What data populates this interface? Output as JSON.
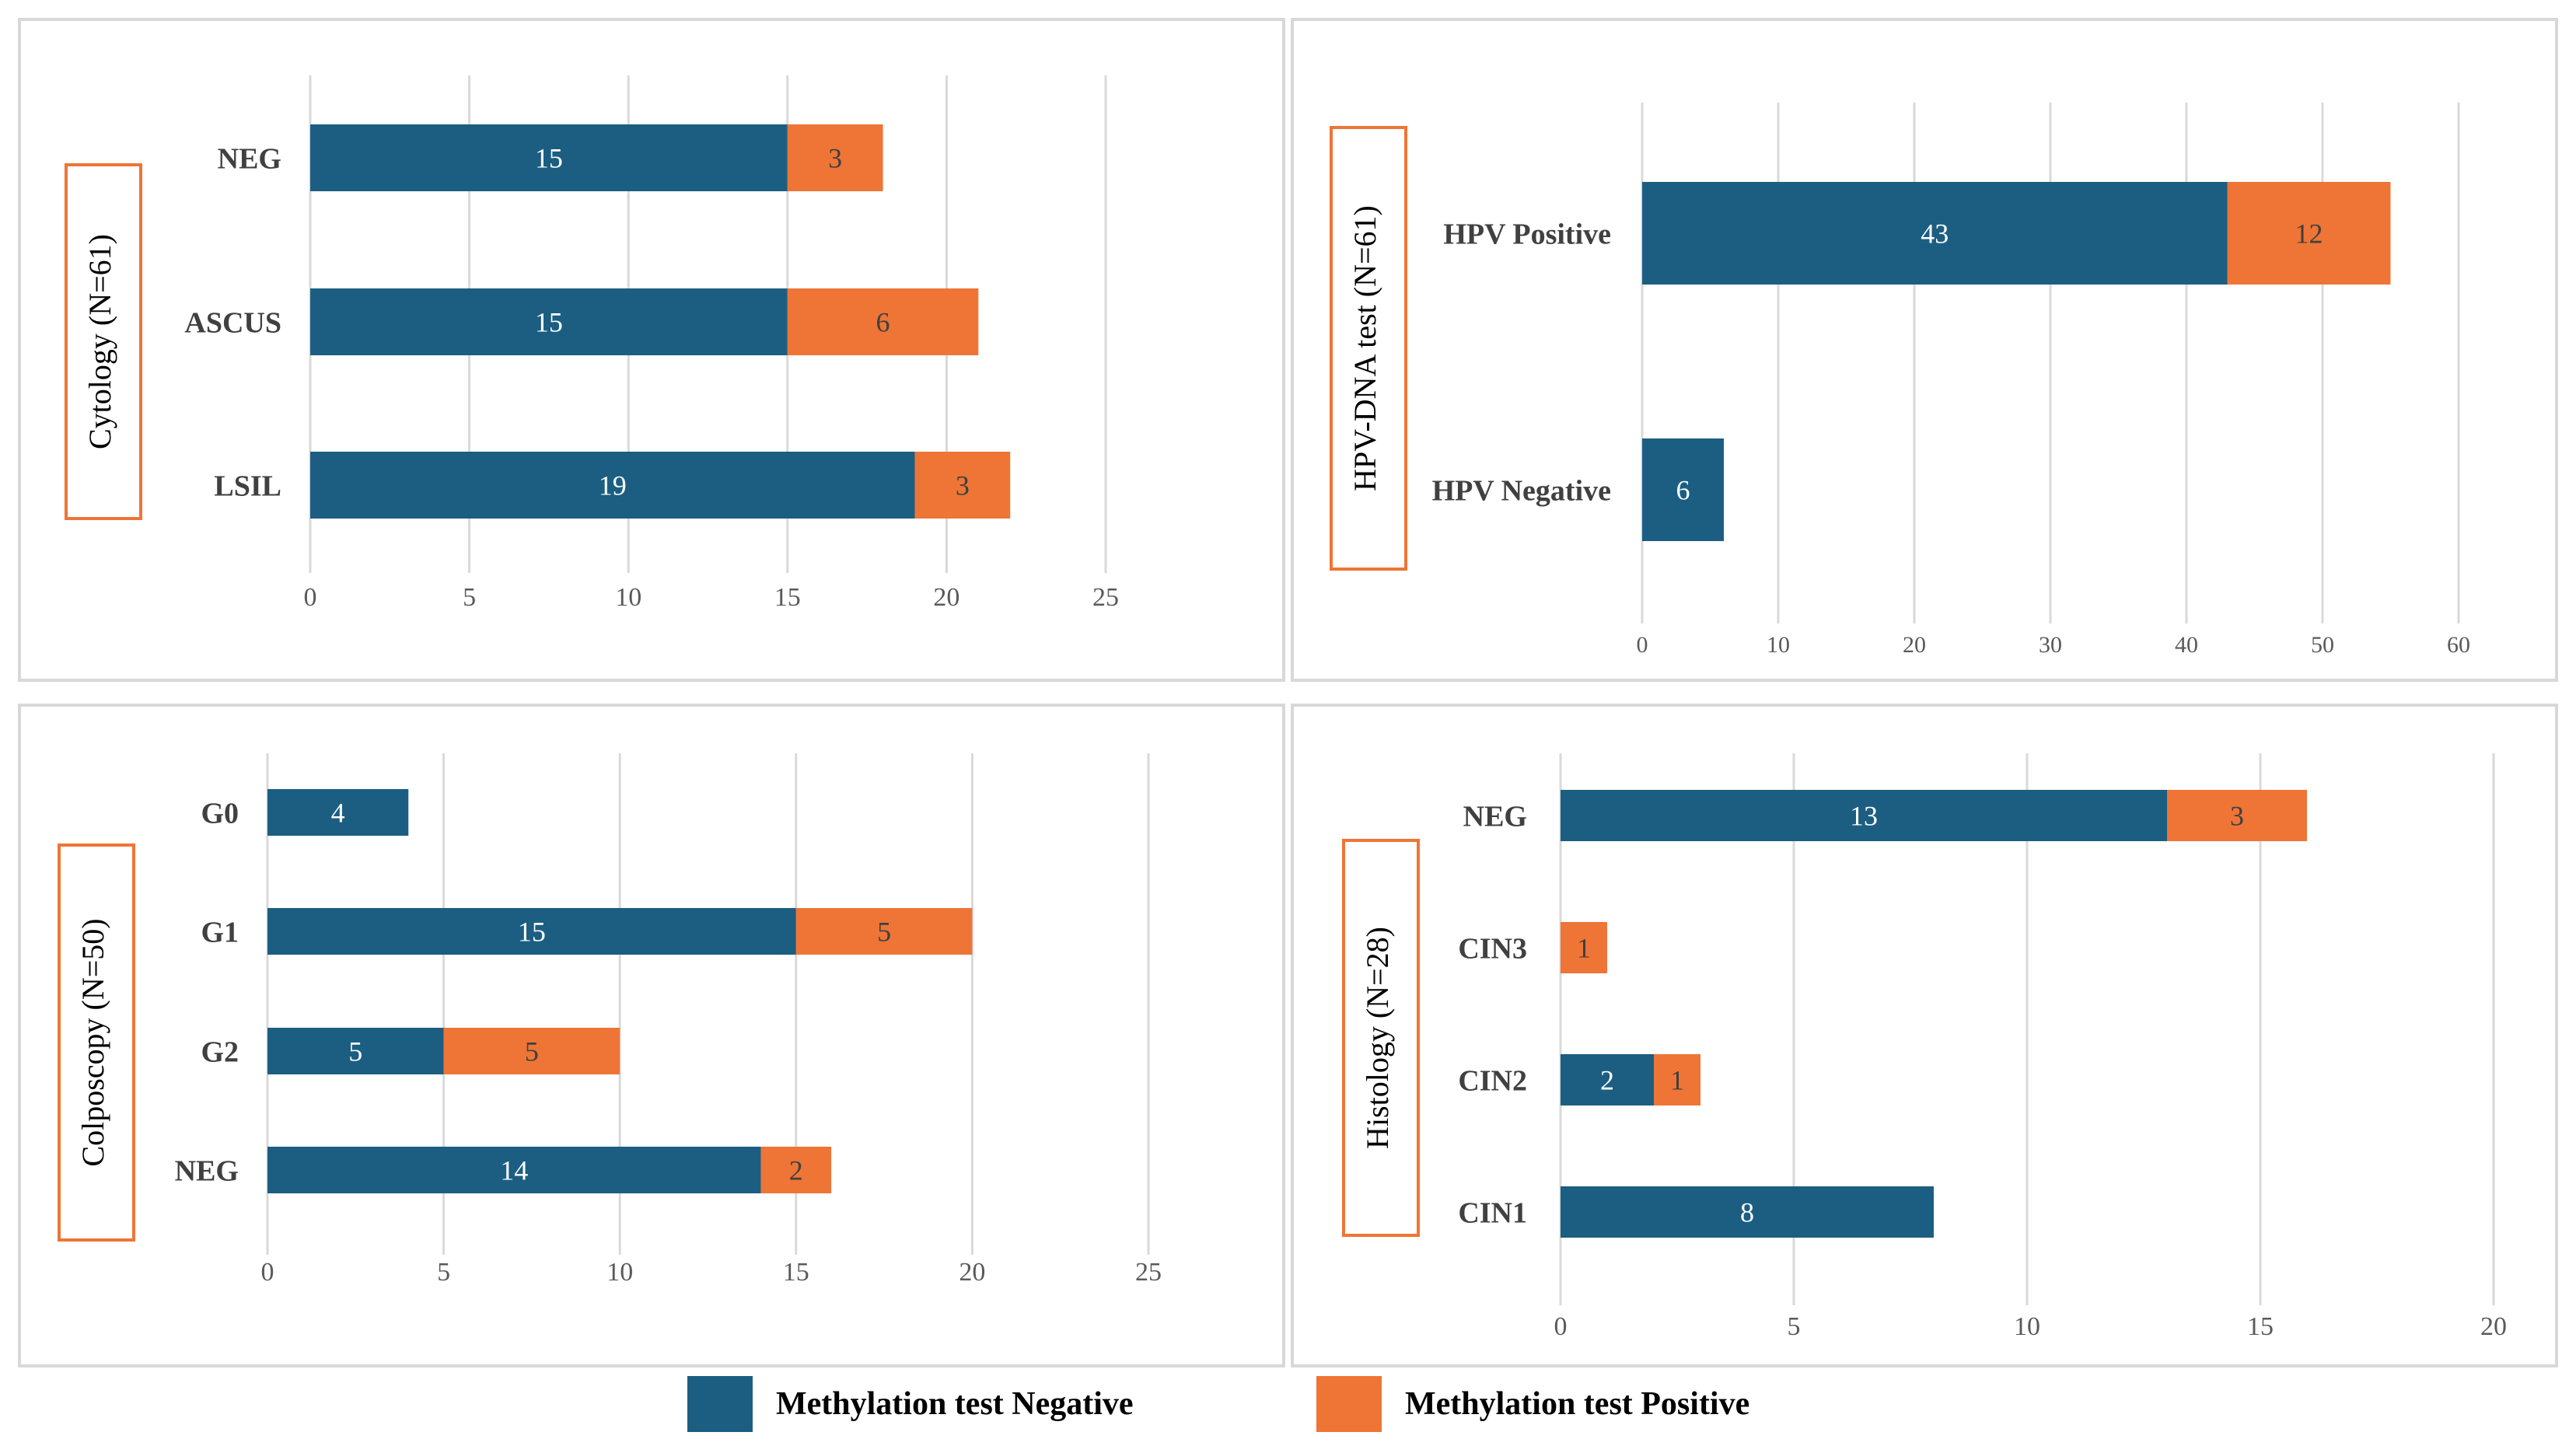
{
  "colors": {
    "negative": "#1b5e82",
    "positive": "#ee7536",
    "title_box_border": "#ee7536",
    "gridline": "#d9d9d9"
  },
  "legend": {
    "negative_label": "Methylation test Negative",
    "positive_label": "Methylation test Positive"
  },
  "chart_data": [
    {
      "type": "bar",
      "orientation": "horizontal",
      "stacked": true,
      "title": "Cytology (N=61)",
      "categories": [
        "NEG",
        "ASCUS",
        "LSIL"
      ],
      "series": [
        {
          "name": "Methylation test Negative",
          "values": [
            15,
            15,
            19
          ]
        },
        {
          "name": "Methylation test Positive",
          "values": [
            3,
            6,
            3
          ]
        }
      ],
      "xlim": [
        0,
        25
      ],
      "xticks": [
        0,
        5,
        10,
        15,
        20,
        25
      ],
      "grid": true
    },
    {
      "type": "bar",
      "orientation": "horizontal",
      "stacked": true,
      "title": "HPV-DNA test (N=61)",
      "categories": [
        "HPV Positive",
        "HPV Negative"
      ],
      "series": [
        {
          "name": "Methylation test Negative",
          "values": [
            43,
            6
          ]
        },
        {
          "name": "Methylation test Positive",
          "values": [
            12,
            0
          ]
        }
      ],
      "xlim": [
        0,
        60
      ],
      "xticks": [
        0,
        10,
        20,
        30,
        40,
        50,
        60
      ],
      "grid": true
    },
    {
      "type": "bar",
      "orientation": "horizontal",
      "stacked": true,
      "title": "Colposcopy (N=50)",
      "categories": [
        "G0",
        "G1",
        "G2",
        "NEG"
      ],
      "series": [
        {
          "name": "Methylation test Negative",
          "values": [
            4,
            15,
            5,
            14
          ]
        },
        {
          "name": "Methylation test Positive",
          "values": [
            0,
            5,
            5,
            2
          ]
        }
      ],
      "xlim": [
        0,
        25
      ],
      "xticks": [
        0,
        5,
        10,
        15,
        20,
        25
      ],
      "grid": true
    },
    {
      "type": "bar",
      "orientation": "horizontal",
      "stacked": true,
      "title": "Histology (N=28)",
      "categories": [
        "NEG",
        "CIN3",
        "CIN2",
        "CIN1"
      ],
      "series": [
        {
          "name": "Methylation test Negative",
          "values": [
            13,
            0,
            2,
            8
          ]
        },
        {
          "name": "Methylation test Positive",
          "values": [
            3,
            1,
            1,
            0
          ]
        }
      ],
      "xlim": [
        0,
        20
      ],
      "xticks": [
        0,
        5,
        10,
        15,
        20
      ],
      "grid": true
    }
  ]
}
